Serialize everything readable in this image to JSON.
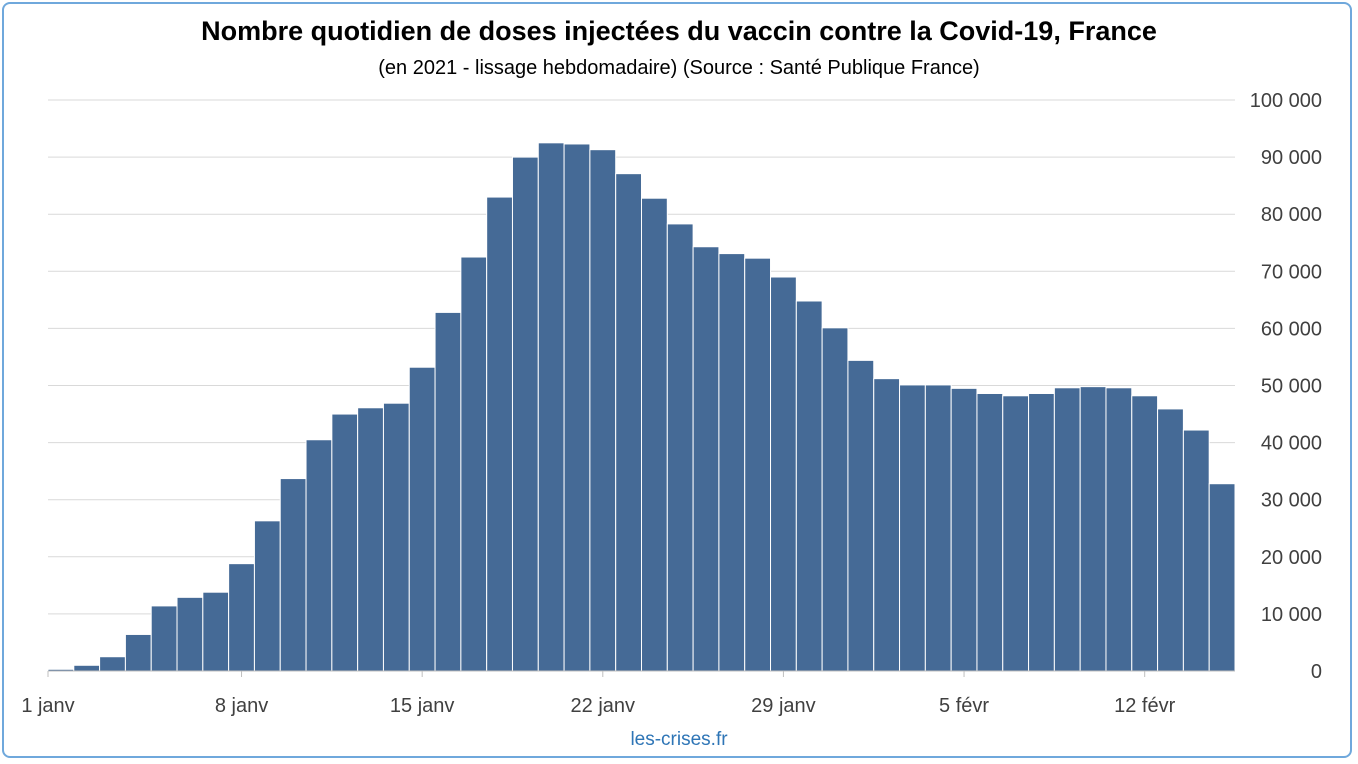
{
  "chart_data": {
    "type": "bar",
    "title": "Nombre quotidien de doses injectées du vaccin contre la Covid-19, France",
    "subtitle": "(en 2021 - lissage hebdomadaire) (Source : Santé Publique France)",
    "xlabel": "",
    "ylabel": "",
    "ylim": [
      0,
      100000
    ],
    "yticks": [
      0,
      10000,
      20000,
      30000,
      40000,
      50000,
      60000,
      70000,
      80000,
      90000,
      100000
    ],
    "ytick_labels": [
      "0",
      "10 000",
      "20 000",
      "30 000",
      "40 000",
      "50 000",
      "60 000",
      "70 000",
      "80 000",
      "90 000",
      "100 000"
    ],
    "y_axis_position": "right",
    "grid": true,
    "bar_color": "#456a96",
    "categories": [
      "1 janv",
      "2 janv",
      "3 janv",
      "4 janv",
      "5 janv",
      "6 janv",
      "7 janv",
      "8 janv",
      "9 janv",
      "10 janv",
      "11 janv",
      "12 janv",
      "13 janv",
      "14 janv",
      "15 janv",
      "16 janv",
      "17 janv",
      "18 janv",
      "19 janv",
      "20 janv",
      "21 janv",
      "22 janv",
      "23 janv",
      "24 janv",
      "25 janv",
      "26 janv",
      "27 janv",
      "28 janv",
      "29 janv",
      "30 janv",
      "31 janv",
      "1 févr",
      "2 févr",
      "3 févr",
      "4 févr",
      "5 févr",
      "6 févr",
      "7 févr",
      "8 févr",
      "9 févr",
      "10 févr",
      "11 févr",
      "12 févr",
      "13 févr",
      "14 févr",
      "15 févr"
    ],
    "xtick_labels": [
      {
        "index": 0,
        "label": "1 janv"
      },
      {
        "index": 7,
        "label": "8 janv"
      },
      {
        "index": 14,
        "label": "15 janv"
      },
      {
        "index": 21,
        "label": "22 janv"
      },
      {
        "index": 28,
        "label": "29 janv"
      },
      {
        "index": 35,
        "label": "5 févr"
      },
      {
        "index": 42,
        "label": "12 févr"
      }
    ],
    "values": [
      300,
      1000,
      2500,
      6400,
      11400,
      12900,
      13800,
      18800,
      26300,
      33700,
      40500,
      45000,
      46100,
      46900,
      53200,
      62800,
      72500,
      83000,
      90000,
      92500,
      92300,
      91300,
      87100,
      82800,
      78300,
      74300,
      73100,
      72300,
      69000,
      64800,
      60100,
      54400,
      51200,
      50100,
      50100,
      49500,
      48600,
      48200,
      48600,
      49600,
      49800,
      49600,
      48200,
      45900,
      42200,
      32800
    ]
  },
  "source": "les-crises.fr"
}
